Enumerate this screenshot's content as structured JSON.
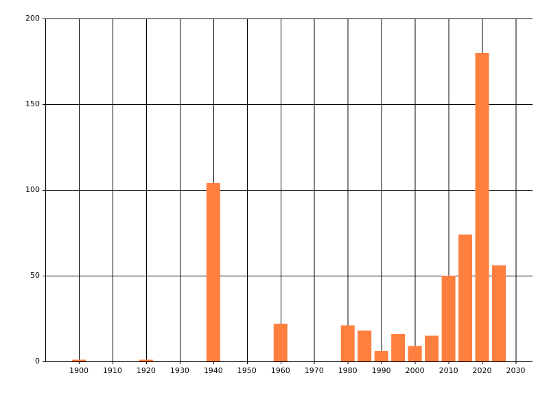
{
  "chart_data": {
    "type": "bar",
    "x": [
      1900,
      1920,
      1940,
      1960,
      1980,
      1985,
      1990,
      1995,
      2000,
      2005,
      2010,
      2015,
      2020,
      2025
    ],
    "values": [
      1,
      1,
      104,
      22,
      21,
      18,
      6,
      16,
      9,
      15,
      50,
      74,
      180,
      56
    ],
    "color": "#ff7f3f",
    "xlim": [
      1890,
      2035
    ],
    "xticks": [
      1900,
      1910,
      1920,
      1930,
      1940,
      1950,
      1960,
      1970,
      1980,
      1990,
      2000,
      2010,
      2020,
      2030
    ],
    "ylim": [
      0,
      200
    ],
    "yticks": [
      0,
      50,
      100,
      150,
      200
    ],
    "grid": true
  }
}
